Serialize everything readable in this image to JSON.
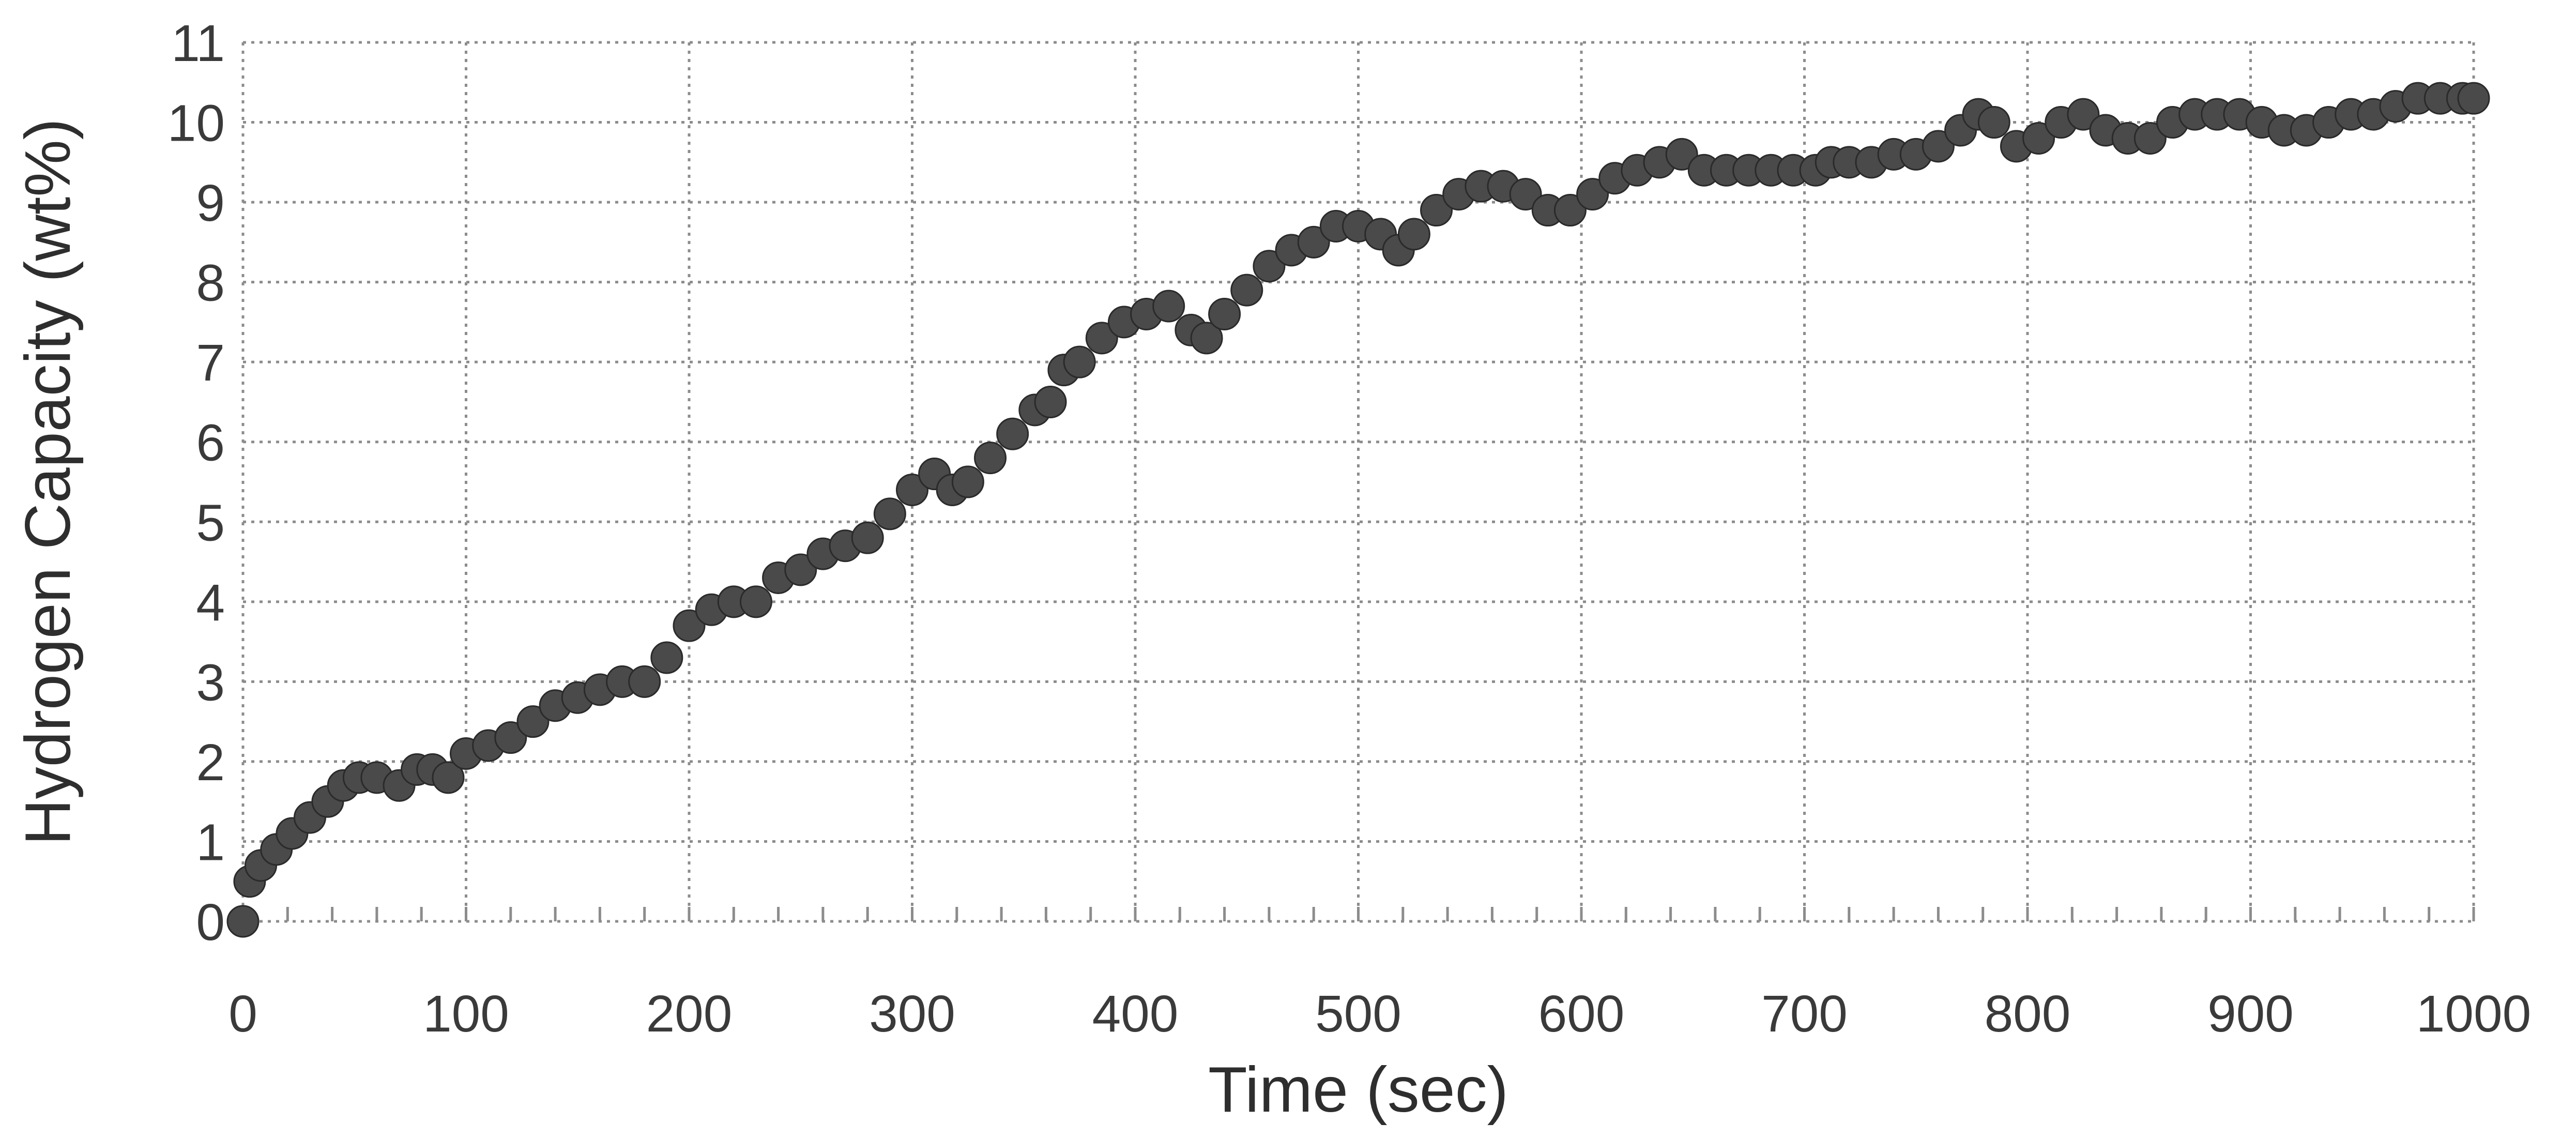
{
  "chart_data": {
    "type": "scatter",
    "title": "",
    "xlabel": "Time (sec)",
    "ylabel": "Hydrogen Capacity (wt%)",
    "xlim": [
      0,
      1000
    ],
    "ylim": [
      0,
      11
    ],
    "xticks": [
      0,
      100,
      200,
      300,
      400,
      500,
      600,
      700,
      800,
      900,
      1000
    ],
    "yticks": [
      0,
      1,
      2,
      3,
      4,
      5,
      6,
      7,
      8,
      9,
      10,
      11
    ],
    "grid": true,
    "colors": {
      "marker": "#4a4a4a",
      "grid": "#8c8c8c",
      "text": "#3a3a3a"
    },
    "series": [
      {
        "x": [
          0,
          3,
          8,
          15,
          22,
          30,
          38,
          45,
          52,
          60,
          70,
          78,
          85,
          92,
          100,
          110,
          120,
          130,
          140,
          150,
          160,
          170,
          180,
          190,
          200,
          210,
          220,
          230,
          240,
          250,
          260,
          270,
          280,
          290,
          300,
          310,
          318,
          325,
          335,
          345,
          355,
          362,
          368,
          375,
          385,
          395,
          405,
          415,
          425,
          432,
          440,
          450,
          460,
          470,
          480,
          490,
          500,
          510,
          518,
          525,
          535,
          545,
          555,
          565,
          575,
          585,
          595,
          605,
          615,
          625,
          635,
          645,
          655,
          665,
          675,
          685,
          695,
          705,
          712,
          720,
          730,
          740,
          750,
          760,
          770,
          778,
          785,
          795,
          805,
          815,
          825,
          835,
          845,
          855,
          865,
          875,
          885,
          895,
          905,
          915,
          925,
          935,
          945,
          955,
          965,
          975,
          985,
          995,
          1000
        ],
        "y": [
          0,
          0.5,
          0.7,
          0.9,
          1.1,
          1.3,
          1.5,
          1.7,
          1.8,
          1.8,
          1.7,
          1.9,
          1.9,
          1.8,
          2.1,
          2.2,
          2.3,
          2.5,
          2.7,
          2.8,
          2.9,
          3.0,
          3.0,
          3.3,
          3.7,
          3.9,
          4.0,
          4.0,
          4.3,
          4.4,
          4.6,
          4.7,
          4.8,
          5.1,
          5.4,
          5.6,
          5.4,
          5.5,
          5.8,
          6.1,
          6.4,
          6.5,
          6.9,
          7.0,
          7.3,
          7.5,
          7.6,
          7.7,
          7.4,
          7.3,
          7.6,
          7.9,
          8.2,
          8.4,
          8.5,
          8.7,
          8.7,
          8.6,
          8.4,
          8.6,
          8.9,
          9.1,
          9.2,
          9.2,
          9.1,
          8.9,
          8.9,
          9.1,
          9.3,
          9.4,
          9.5,
          9.6,
          9.4,
          9.4,
          9.4,
          9.4,
          9.4,
          9.4,
          9.5,
          9.5,
          9.5,
          9.6,
          9.6,
          9.7,
          9.9,
          10.1,
          10.0,
          9.7,
          9.8,
          10.0,
          10.1,
          9.9,
          9.8,
          9.8,
          10.0,
          10.1,
          10.1,
          10.1,
          10.0,
          9.9,
          9.9,
          10.0,
          10.1,
          10.1,
          10.2,
          10.3,
          10.3,
          10.3,
          10.3
        ]
      }
    ]
  }
}
